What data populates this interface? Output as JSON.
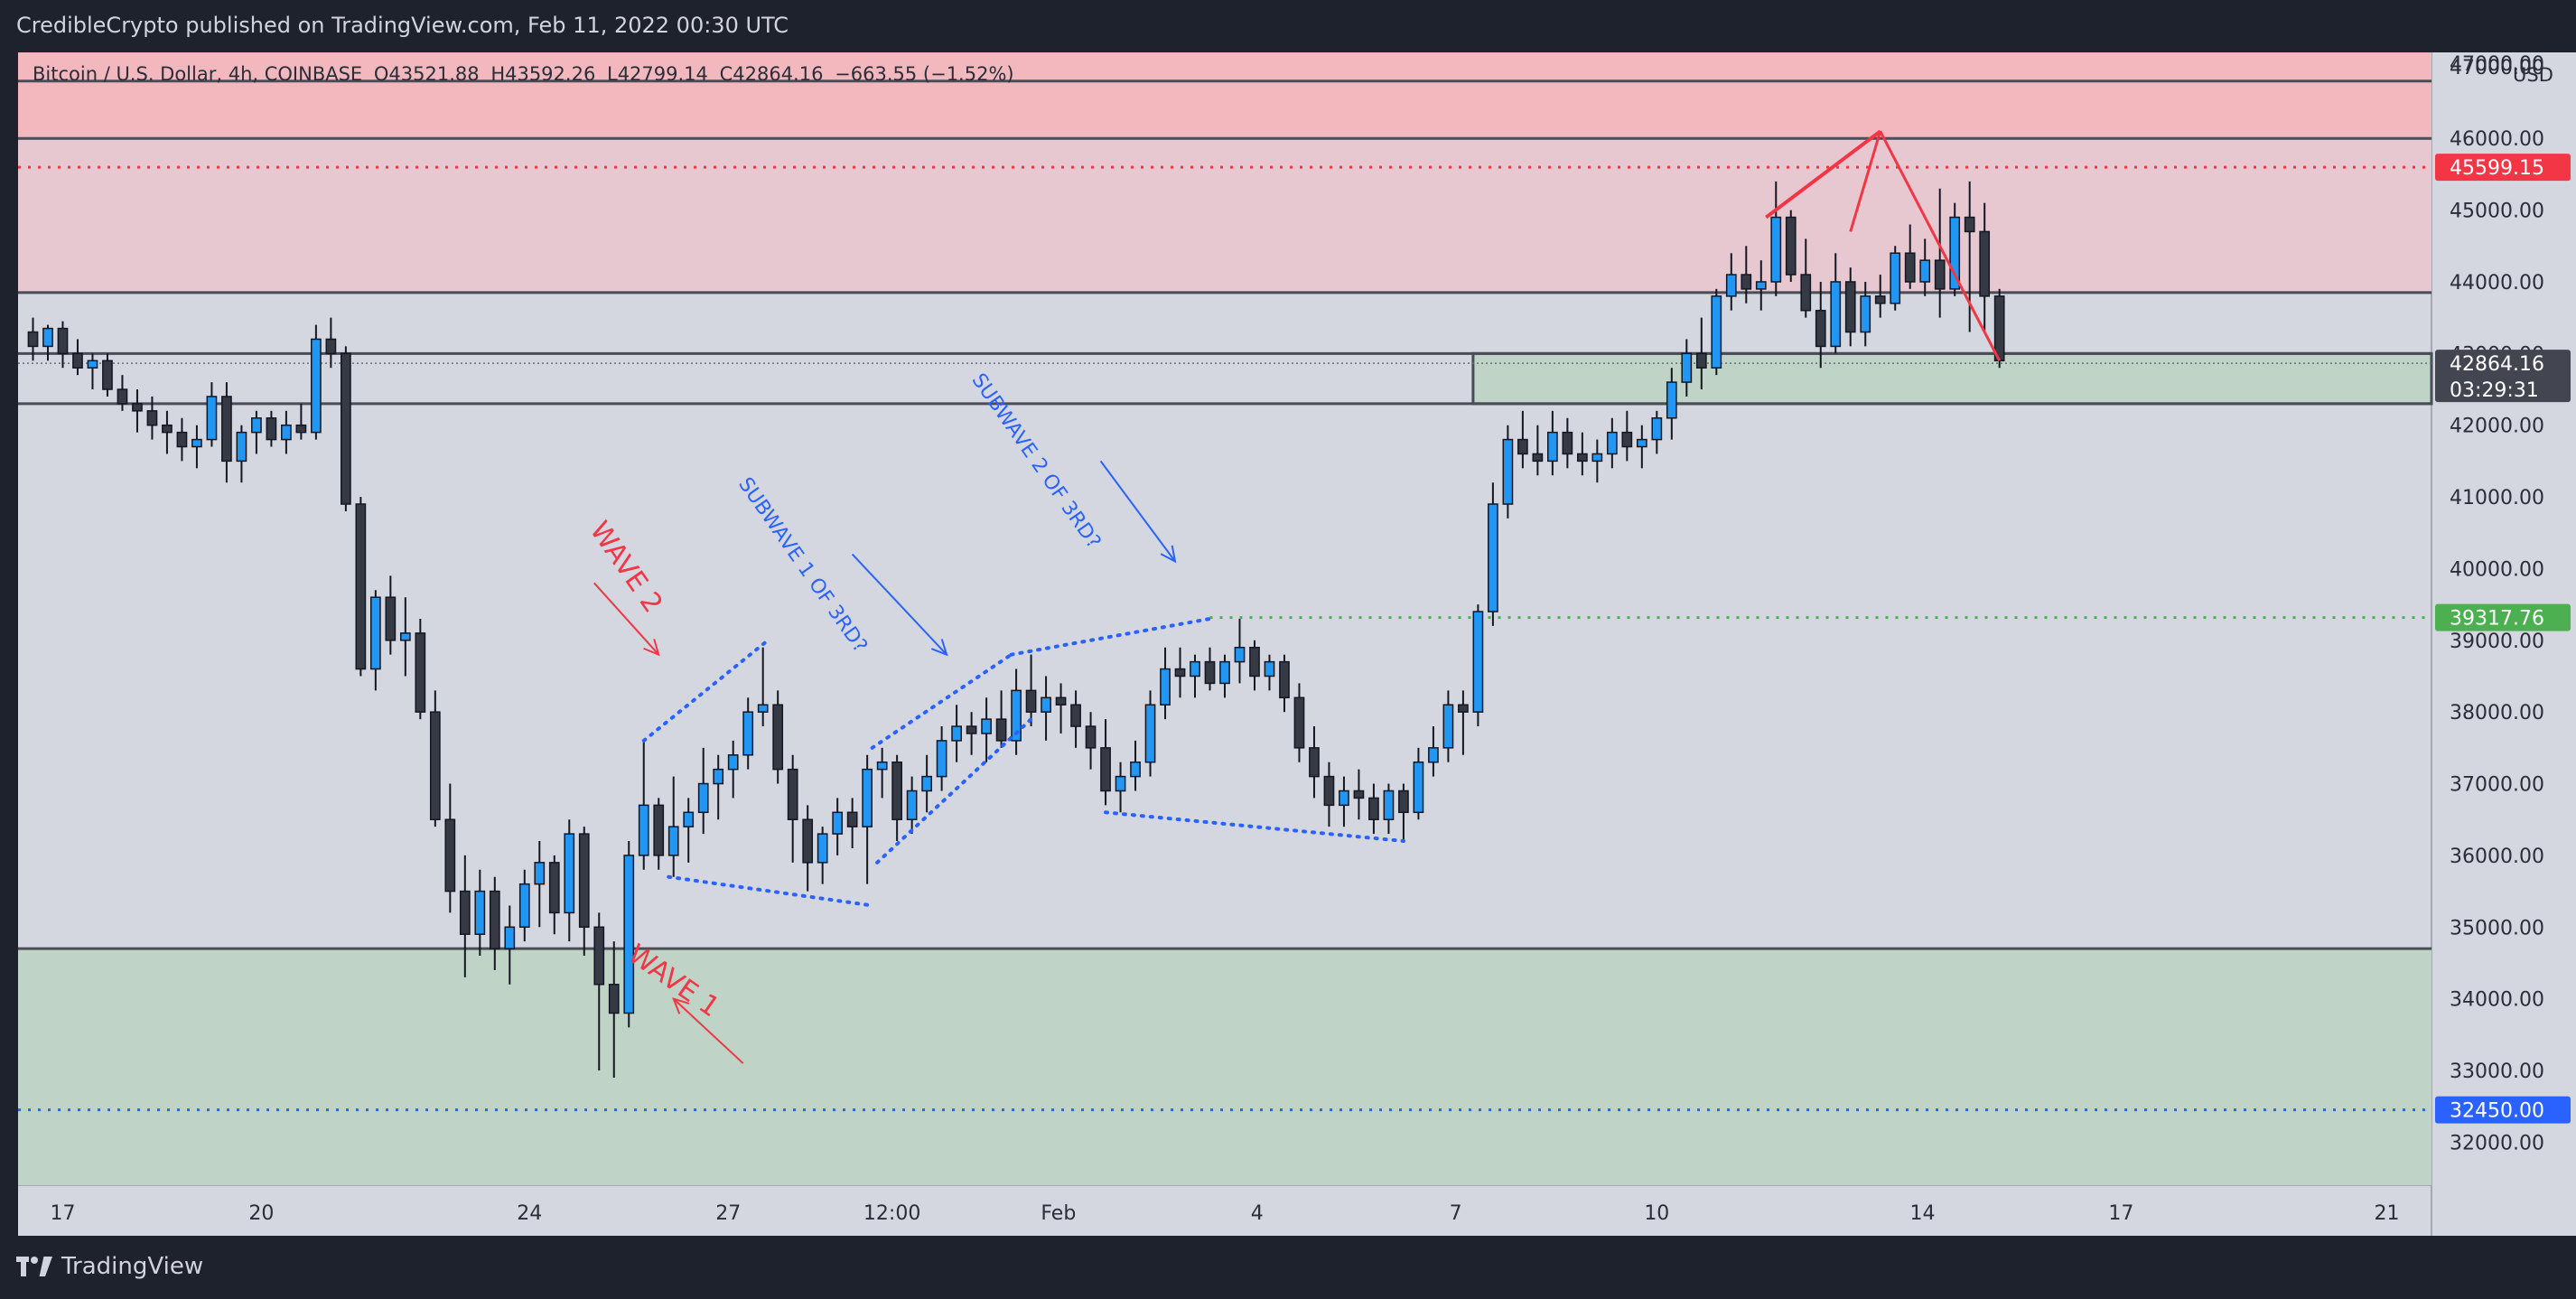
{
  "header": {
    "publisher_line": "CredibleCrypto published on TradingView.com, Feb 11, 2022 00:30 UTC"
  },
  "footer": {
    "brand": "TradingView"
  },
  "symbol_line": {
    "symbol": "Bitcoin / U.S. Dollar, 4h, COINBASE",
    "open": "O43521.88",
    "high": "H43592.26",
    "low": "L42799.14",
    "close": "C42864.16",
    "change": "−663.55 (−1.52%)"
  },
  "chart_data": {
    "type": "candlestick",
    "currency_label": "USD",
    "y_ticks": [
      "47000.00",
      "46000.00",
      "45000.00",
      "44000.00",
      "43000.00",
      "42000.00",
      "41000.00",
      "40000.00",
      "39000.00",
      "38000.00",
      "37000.00",
      "36000.00",
      "35000.00",
      "34000.00",
      "33000.00",
      "32000.00"
    ],
    "y_tick_values": [
      47000,
      46000,
      45000,
      44000,
      43000,
      42000,
      41000,
      40000,
      39000,
      38000,
      37000,
      36000,
      35000,
      34000,
      33000,
      32000
    ],
    "ylim": [
      31400,
      47200
    ],
    "x_ticks": [
      {
        "label": "17",
        "t": 0.6
      },
      {
        "label": "20",
        "t": 4.6
      },
      {
        "label": "24",
        "t": 10.0
      },
      {
        "label": "27",
        "t": 14.0
      },
      {
        "label": "12:00",
        "t": 17.3
      },
      {
        "label": "Feb",
        "t": 20.65
      },
      {
        "label": "4",
        "t": 24.65
      },
      {
        "label": "7",
        "t": 28.65
      },
      {
        "label": "10",
        "t": 32.7
      },
      {
        "label": "14",
        "t": 38.05
      },
      {
        "label": "17",
        "t": 42.05
      },
      {
        "label": "21",
        "t": 47.4
      }
    ],
    "xlim": [
      -0.3,
      48.3
    ],
    "price_labels": [
      {
        "value": "45599.15",
        "price": 45599,
        "color": "#f23645"
      },
      {
        "value": "42864.16",
        "price": 42864,
        "color": "#434651",
        "sub": "03:29:31"
      },
      {
        "value": "39317.76",
        "price": 39318,
        "color": "#4caf50"
      },
      {
        "value": "32450.00",
        "price": 32450,
        "color": "#2962ff"
      }
    ],
    "zones": [
      {
        "name": "supply-zone-upper",
        "from": 46000,
        "to": 47200,
        "color": "#f2b8be"
      },
      {
        "name": "supply-zone",
        "from": 43850,
        "to": 46000,
        "color": "#e8c8d0"
      },
      {
        "name": "demand-zone",
        "from": 31400,
        "to": 34700,
        "color": "#bfd4c6"
      },
      {
        "name": "support-box",
        "from": 42300,
        "to": 43000,
        "t_from": 29.0,
        "t_to": 48.3,
        "color": "#bfd4c6"
      }
    ],
    "hlines": [
      46800,
      46000,
      43850,
      42300,
      43000,
      34700
    ],
    "annotations": [
      {
        "text": "WAVE 2",
        "color": "#f23645",
        "t": 11.8,
        "price": 39950,
        "rotate": 55
      },
      {
        "text": "WAVE 1",
        "color": "#f23645",
        "t": 12.8,
        "price": 34150,
        "rotate": 35
      },
      {
        "text": "SUBWAVE 1 OF 3RD?",
        "color": "#2962ff",
        "t": 15.4,
        "price": 40000,
        "rotate": 55
      },
      {
        "text": "SUBWAVE 2 OF 3RD?",
        "color": "#2962ff",
        "t": 20.1,
        "price": 41450,
        "rotate": 55
      }
    ],
    "candles": [
      [
        0.0,
        43300,
        43500,
        42900,
        43100
      ],
      [
        0.3,
        43100,
        43400,
        42900,
        43350
      ],
      [
        0.6,
        43350,
        43450,
        42800,
        43000
      ],
      [
        0.9,
        43000,
        43200,
        42700,
        42800
      ],
      [
        1.2,
        42800,
        43000,
        42500,
        42900
      ],
      [
        1.5,
        42900,
        43000,
        42400,
        42500
      ],
      [
        1.8,
        42500,
        42700,
        42200,
        42300
      ],
      [
        2.1,
        42300,
        42500,
        41900,
        42200
      ],
      [
        2.4,
        42200,
        42400,
        41800,
        42000
      ],
      [
        2.7,
        42000,
        42200,
        41600,
        41900
      ],
      [
        3.0,
        41900,
        42100,
        41500,
        41700
      ],
      [
        3.3,
        41700,
        42000,
        41400,
        41800
      ],
      [
        3.6,
        41800,
        42600,
        41700,
        42400
      ],
      [
        3.9,
        42400,
        42600,
        41200,
        41500
      ],
      [
        4.2,
        41500,
        42000,
        41200,
        41900
      ],
      [
        4.5,
        41900,
        42200,
        41600,
        42100
      ],
      [
        4.8,
        42100,
        42200,
        41700,
        41800
      ],
      [
        5.1,
        41800,
        42200,
        41600,
        42000
      ],
      [
        5.4,
        42000,
        42300,
        41800,
        41900
      ],
      [
        5.7,
        41900,
        43400,
        41800,
        43200
      ],
      [
        6.0,
        43200,
        43500,
        42800,
        43000
      ],
      [
        6.3,
        43000,
        43100,
        40800,
        40900
      ],
      [
        6.6,
        40900,
        41000,
        38500,
        38600
      ],
      [
        6.9,
        38600,
        39700,
        38300,
        39600
      ],
      [
        7.2,
        39600,
        39900,
        38800,
        39000
      ],
      [
        7.5,
        39000,
        39600,
        38500,
        39100
      ],
      [
        7.8,
        39100,
        39300,
        37900,
        38000
      ],
      [
        8.1,
        38000,
        38300,
        36400,
        36500
      ],
      [
        8.4,
        36500,
        37000,
        35200,
        35500
      ],
      [
        8.7,
        35500,
        36000,
        34300,
        34900
      ],
      [
        9.0,
        34900,
        35800,
        34600,
        35500
      ],
      [
        9.3,
        35500,
        35700,
        34400,
        34700
      ],
      [
        9.6,
        34700,
        35300,
        34200,
        35000
      ],
      [
        9.9,
        35000,
        35800,
        34800,
        35600
      ],
      [
        10.2,
        35600,
        36200,
        35000,
        35900
      ],
      [
        10.5,
        35900,
        36000,
        34900,
        35200
      ],
      [
        10.8,
        35200,
        36500,
        34800,
        36300
      ],
      [
        11.1,
        36300,
        36400,
        34600,
        35000
      ],
      [
        11.4,
        35000,
        35200,
        33000,
        34200
      ],
      [
        11.7,
        34200,
        34800,
        32900,
        33800
      ],
      [
        12.0,
        33800,
        36200,
        33600,
        36000
      ],
      [
        12.3,
        36000,
        37600,
        35800,
        36700
      ],
      [
        12.6,
        36700,
        36800,
        35800,
        36000
      ],
      [
        12.9,
        36000,
        37100,
        35700,
        36400
      ],
      [
        13.2,
        36400,
        36800,
        35900,
        36600
      ],
      [
        13.5,
        36600,
        37500,
        36300,
        37000
      ],
      [
        13.8,
        37000,
        37400,
        36500,
        37200
      ],
      [
        14.1,
        37200,
        37600,
        36800,
        37400
      ],
      [
        14.4,
        37400,
        38200,
        37200,
        38000
      ],
      [
        14.7,
        38000,
        38900,
        37800,
        38100
      ],
      [
        15.0,
        38100,
        38300,
        37000,
        37200
      ],
      [
        15.3,
        37200,
        37400,
        35900,
        36500
      ],
      [
        15.6,
        36500,
        36700,
        35500,
        35900
      ],
      [
        15.9,
        35900,
        36400,
        35600,
        36300
      ],
      [
        16.2,
        36300,
        36800,
        36000,
        36600
      ],
      [
        16.5,
        36600,
        36800,
        36100,
        36400
      ],
      [
        16.8,
        36400,
        37400,
        35600,
        37200
      ],
      [
        17.1,
        37200,
        37500,
        36800,
        37300
      ],
      [
        17.4,
        37300,
        37400,
        36200,
        36500
      ],
      [
        17.7,
        36500,
        37100,
        36300,
        36900
      ],
      [
        18.0,
        36900,
        37400,
        36600,
        37100
      ],
      [
        18.3,
        37100,
        37800,
        36900,
        37600
      ],
      [
        18.6,
        37600,
        38100,
        37300,
        37800
      ],
      [
        18.9,
        37800,
        38000,
        37400,
        37700
      ],
      [
        19.2,
        37700,
        38200,
        37300,
        37900
      ],
      [
        19.5,
        37900,
        38300,
        37500,
        37600
      ],
      [
        19.8,
        37600,
        38600,
        37400,
        38300
      ],
      [
        20.1,
        38300,
        38800,
        37800,
        38000
      ],
      [
        20.4,
        38000,
        38500,
        37600,
        38200
      ],
      [
        20.7,
        38200,
        38400,
        37700,
        38100
      ],
      [
        21.0,
        38100,
        38300,
        37500,
        37800
      ],
      [
        21.3,
        37800,
        38000,
        37200,
        37500
      ],
      [
        21.6,
        37500,
        37900,
        36700,
        36900
      ],
      [
        21.9,
        36900,
        37300,
        36600,
        37100
      ],
      [
        22.2,
        37100,
        37600,
        36900,
        37300
      ],
      [
        22.5,
        37300,
        38300,
        37100,
        38100
      ],
      [
        22.8,
        38100,
        38900,
        37900,
        38600
      ],
      [
        23.1,
        38600,
        38900,
        38200,
        38500
      ],
      [
        23.4,
        38500,
        38800,
        38200,
        38700
      ],
      [
        23.7,
        38700,
        38900,
        38300,
        38400
      ],
      [
        24.0,
        38400,
        38800,
        38200,
        38700
      ],
      [
        24.3,
        38700,
        39300,
        38400,
        38900
      ],
      [
        24.6,
        38900,
        39000,
        38300,
        38500
      ],
      [
        24.9,
        38500,
        38800,
        38300,
        38700
      ],
      [
        25.2,
        38700,
        38800,
        38000,
        38200
      ],
      [
        25.5,
        38200,
        38400,
        37300,
        37500
      ],
      [
        25.8,
        37500,
        37800,
        36800,
        37100
      ],
      [
        26.1,
        37100,
        37300,
        36400,
        36700
      ],
      [
        26.4,
        36700,
        37100,
        36400,
        36900
      ],
      [
        26.7,
        36900,
        37200,
        36500,
        36800
      ],
      [
        27.0,
        36800,
        37000,
        36300,
        36500
      ],
      [
        27.3,
        36500,
        37000,
        36300,
        36900
      ],
      [
        27.6,
        36900,
        37000,
        36200,
        36600
      ],
      [
        27.9,
        36600,
        37500,
        36500,
        37300
      ],
      [
        28.2,
        37300,
        37800,
        37100,
        37500
      ],
      [
        28.5,
        37500,
        38300,
        37300,
        38100
      ],
      [
        28.8,
        38100,
        38300,
        37400,
        38000
      ],
      [
        29.1,
        38000,
        39500,
        37800,
        39400
      ],
      [
        29.4,
        39400,
        41200,
        39200,
        40900
      ],
      [
        29.7,
        40900,
        42000,
        40700,
        41800
      ],
      [
        30.0,
        41800,
        42200,
        41400,
        41600
      ],
      [
        30.3,
        41600,
        42000,
        41300,
        41500
      ],
      [
        30.6,
        41500,
        42200,
        41300,
        41900
      ],
      [
        30.9,
        41900,
        42100,
        41400,
        41600
      ],
      [
        31.2,
        41600,
        41900,
        41300,
        41500
      ],
      [
        31.5,
        41500,
        41800,
        41200,
        41600
      ],
      [
        31.8,
        41600,
        42100,
        41400,
        41900
      ],
      [
        32.1,
        41900,
        42200,
        41500,
        41700
      ],
      [
        32.4,
        41700,
        42000,
        41400,
        41800
      ],
      [
        32.7,
        41800,
        42200,
        41600,
        42100
      ],
      [
        33.0,
        42100,
        42800,
        41800,
        42600
      ],
      [
        33.3,
        42600,
        43200,
        42400,
        43000
      ],
      [
        33.6,
        43000,
        43500,
        42500,
        42800
      ],
      [
        33.9,
        42800,
        43900,
        42700,
        43800
      ],
      [
        34.2,
        43800,
        44400,
        43600,
        44100
      ],
      [
        34.5,
        44100,
        44500,
        43700,
        43900
      ],
      [
        34.8,
        43900,
        44300,
        43600,
        44000
      ],
      [
        35.1,
        44000,
        45400,
        43800,
        44900
      ],
      [
        35.4,
        44900,
        45000,
        44000,
        44100
      ],
      [
        35.7,
        44100,
        44600,
        43500,
        43600
      ],
      [
        36.0,
        43600,
        44000,
        42800,
        43100
      ],
      [
        36.3,
        43100,
        44400,
        43000,
        44000
      ],
      [
        36.6,
        44000,
        44200,
        43100,
        43300
      ],
      [
        36.9,
        43300,
        44000,
        43100,
        43800
      ],
      [
        37.2,
        43800,
        44100,
        43500,
        43700
      ],
      [
        37.5,
        43700,
        44500,
        43600,
        44400
      ],
      [
        37.8,
        44400,
        44800,
        43900,
        44000
      ],
      [
        38.1,
        44000,
        44600,
        43800,
        44300
      ],
      [
        38.4,
        44300,
        45300,
        43500,
        43900
      ],
      [
        38.7,
        43900,
        45100,
        43800,
        44900
      ],
      [
        39.0,
        44900,
        45400,
        43300,
        44700
      ],
      [
        39.3,
        44700,
        45100,
        43300,
        43800
      ],
      [
        39.6,
        43800,
        43900,
        42800,
        42900
      ]
    ],
    "diagonals": [
      {
        "name": "red-wedge-top",
        "color": "#f23645",
        "style": "solid",
        "pts": [
          [
            34.9,
            44900
          ],
          [
            37.2,
            46100
          ]
        ]
      },
      {
        "name": "red-projection-a",
        "color": "#f23645",
        "style": "solid",
        "pts": [
          [
            37.2,
            46100
          ],
          [
            36.6,
            44700
          ]
        ]
      },
      {
        "name": "red-projection-b",
        "color": "#f23645",
        "style": "solid",
        "pts": [
          [
            37.2,
            46100
          ],
          [
            39.6,
            42900
          ]
        ]
      },
      {
        "name": "wave2-top",
        "color": "#2962ff",
        "style": "dotted",
        "pts": [
          [
            12.3,
            37600
          ],
          [
            14.8,
            39000
          ]
        ]
      },
      {
        "name": "wave2-bottom",
        "color": "#2962ff",
        "style": "dotted",
        "pts": [
          [
            12.8,
            35700
          ],
          [
            16.9,
            35300
          ]
        ]
      },
      {
        "name": "sub1-top",
        "color": "#2962ff",
        "style": "dotted",
        "pts": [
          [
            16.9,
            37500
          ],
          [
            19.7,
            38800
          ]
        ]
      },
      {
        "name": "sub1-bottom",
        "color": "#2962ff",
        "style": "dotted",
        "pts": [
          [
            17.0,
            35900
          ],
          [
            20.1,
            37900
          ]
        ]
      },
      {
        "name": "sub2-top",
        "color": "#2962ff",
        "style": "dotted",
        "pts": [
          [
            19.7,
            38800
          ],
          [
            23.7,
            39300
          ]
        ]
      },
      {
        "name": "sub2-bottom",
        "color": "#2962ff",
        "style": "dotted",
        "pts": [
          [
            21.6,
            36600
          ],
          [
            27.6,
            36200
          ]
        ]
      }
    ],
    "arrows": [
      {
        "name": "wave2-arrow",
        "color": "#f23645",
        "from": [
          11.3,
          39800
        ],
        "to": [
          12.6,
          38800
        ]
      },
      {
        "name": "wave1-arrow",
        "color": "#f23645",
        "from": [
          14.3,
          33100
        ],
        "to": [
          12.9,
          34000
        ]
      },
      {
        "name": "sub1-arrow",
        "color": "#2962ff",
        "from": [
          16.5,
          40200
        ],
        "to": [
          18.4,
          38800
        ]
      },
      {
        "name": "sub2-arrow",
        "color": "#2962ff",
        "from": [
          21.5,
          41500
        ],
        "to": [
          23.0,
          40100
        ]
      }
    ]
  }
}
